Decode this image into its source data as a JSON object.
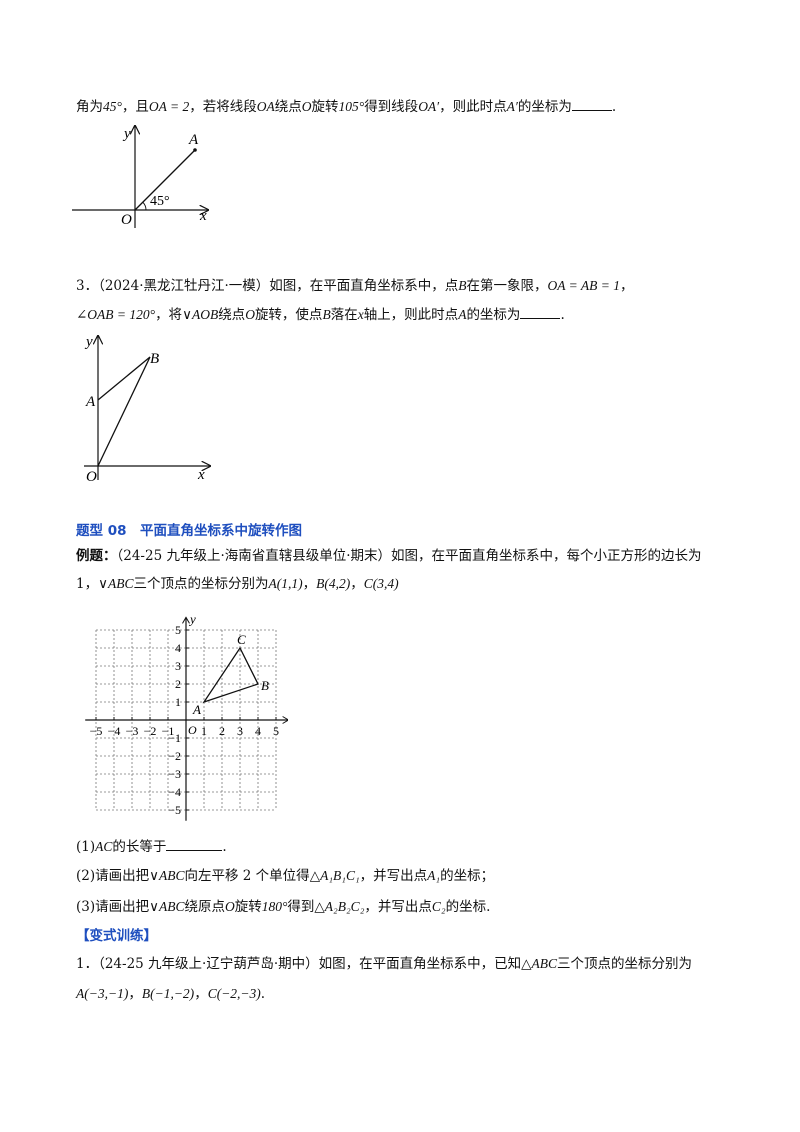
{
  "q2": {
    "line1_a": "角为",
    "deg45": "45°",
    "line1_b": "，且",
    "oa_eq": "OA = 2",
    "line1_c": "，若将线段",
    "seg_oa": "OA",
    "line1_d": "绕点",
    "pt_o": "O",
    "line1_e": "旋转",
    "deg105": "105°",
    "line1_f": "得到线段",
    "seg_oa2": "OA′",
    "line1_g": "，则此时点",
    "pt_a2": "A′",
    "line1_h": "的坐标为",
    "end": "."
  },
  "fig1": {
    "y": "y",
    "x": "x",
    "o": "O",
    "a": "A",
    "angle": "45°"
  },
  "q3": {
    "line1_a": "3．（2024·黑龙江牡丹江·一模）如图，在平面直角坐标系中，点",
    "pt_b": "B",
    "line1_b": "在第一象限，",
    "oa_ab": "OA = AB = 1",
    "line1_c": "，",
    "angle_oab": "∠OAB = 120°",
    "line2_a": "，将",
    "tri_aob": "∨AOB",
    "line2_b": "绕点",
    "pt_o": "O",
    "line2_c": "旋转，使点",
    "pt_b2": "B",
    "line2_d": "落在",
    "x": "x",
    "line2_e": "轴上，则此时点",
    "pt_a": "A",
    "line2_f": "的坐标为",
    "end": "."
  },
  "fig2": {
    "y": "y",
    "x": "x",
    "o": "O",
    "a": "A",
    "b": "B"
  },
  "section": {
    "title": "题型 08　平面直角坐标系中旋转作图"
  },
  "example": {
    "label": "例题：",
    "line1": "（24-25 九年级上·海南省直辖县级单位·期末）如图，在平面直角坐标系中，每个小正方形的边长为",
    "line2_a": "1，",
    "tri": "∨ABC",
    "line2_b": "三个顶点的坐标分别为",
    "ptA": "A(1,1)",
    "sep1": "，",
    "ptB": "B(4,2)",
    "sep2": "，",
    "ptC": "C(3,4)"
  },
  "grid": {
    "xticks": [
      "−5",
      "−4",
      "−3",
      "−2",
      "−1",
      "1",
      "2",
      "3",
      "4",
      "5"
    ],
    "yticks": [
      "5",
      "4",
      "3",
      "2",
      "1",
      "−1",
      "−2",
      "−3",
      "−4",
      "−5"
    ],
    "x": "x",
    "y": "y",
    "o": "O",
    "a": "A",
    "b": "B",
    "c": "C",
    "points": {
      "A": [
        1,
        1
      ],
      "B": [
        4,
        2
      ],
      "C": [
        3,
        4
      ]
    }
  },
  "parts": {
    "p1_a": "(1)",
    "p1_ac": "AC",
    "p1_b": "的长等于",
    "p1_end": ".",
    "p2_a": "(2)请画出把",
    "p2_tri": "∨ABC",
    "p2_b": "向左平移 2 个单位得",
    "p2_tri2": "△A₁B₁C₁",
    "p2_c": "，并写出点",
    "p2_pt": "A₁",
    "p2_d": "的坐标；",
    "p3_a": "(3)请画出把",
    "p3_tri": "∨ABC",
    "p3_b": "绕原点",
    "p3_o": "O",
    "p3_c": "旋转",
    "p3_deg": "180°",
    "p3_d": "得到",
    "p3_tri2": "△A₂B₂C₂",
    "p3_e": "，并写出点",
    "p3_pt": "C₂",
    "p3_f": "的坐标."
  },
  "variant": {
    "label": "【变式训练】",
    "q1_a": "1．（24-25 九年级上·辽宁葫芦岛·期中）如图，在平面直角坐标系中，已知",
    "q1_tri": "△ABC",
    "q1_b": "三个顶点的坐标分别为",
    "ptA": "A(−3,−1)",
    "sep1": "，",
    "ptB": "B(−1,−2)",
    "sep2": "，",
    "ptC": "C(−2,−3)",
    "end": "."
  }
}
